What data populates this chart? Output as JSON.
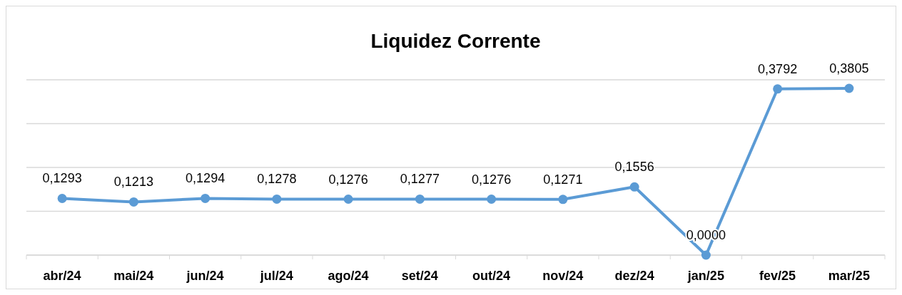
{
  "chart_data": {
    "type": "line",
    "title": "Liquidez Corrente",
    "categories": [
      "abr/24",
      "mai/24",
      "jun/24",
      "jul/24",
      "ago/24",
      "set/24",
      "out/24",
      "nov/24",
      "dez/24",
      "jan/25",
      "fev/25",
      "mar/25"
    ],
    "series": [
      {
        "color": "#5b9bd5",
        "values": [
          0.1293,
          0.1213,
          0.1294,
          0.1278,
          0.1276,
          0.1277,
          0.1276,
          0.1271,
          0.1556,
          0.0,
          0.3792,
          0.3805
        ],
        "value_labels": [
          "0,1293",
          "0,1213",
          "0,1294",
          "0,1278",
          "0,1276",
          "0,1277",
          "0,1276",
          "0,1271",
          "0,1556",
          "0,0000",
          "0,3792",
          "0,3805"
        ]
      }
    ],
    "ylim": [
      0,
      0.4
    ],
    "yticks": [
      {
        "value": 0,
        "label": null
      },
      {
        "value": 0.1,
        "label": null
      },
      {
        "value": 0.2,
        "label": null
      },
      {
        "value": 0.3,
        "label": null
      },
      {
        "value": 0.4,
        "label": null
      }
    ],
    "tick_labels": "x",
    "grid": "y",
    "marker": "circle",
    "line_style": "solid"
  }
}
